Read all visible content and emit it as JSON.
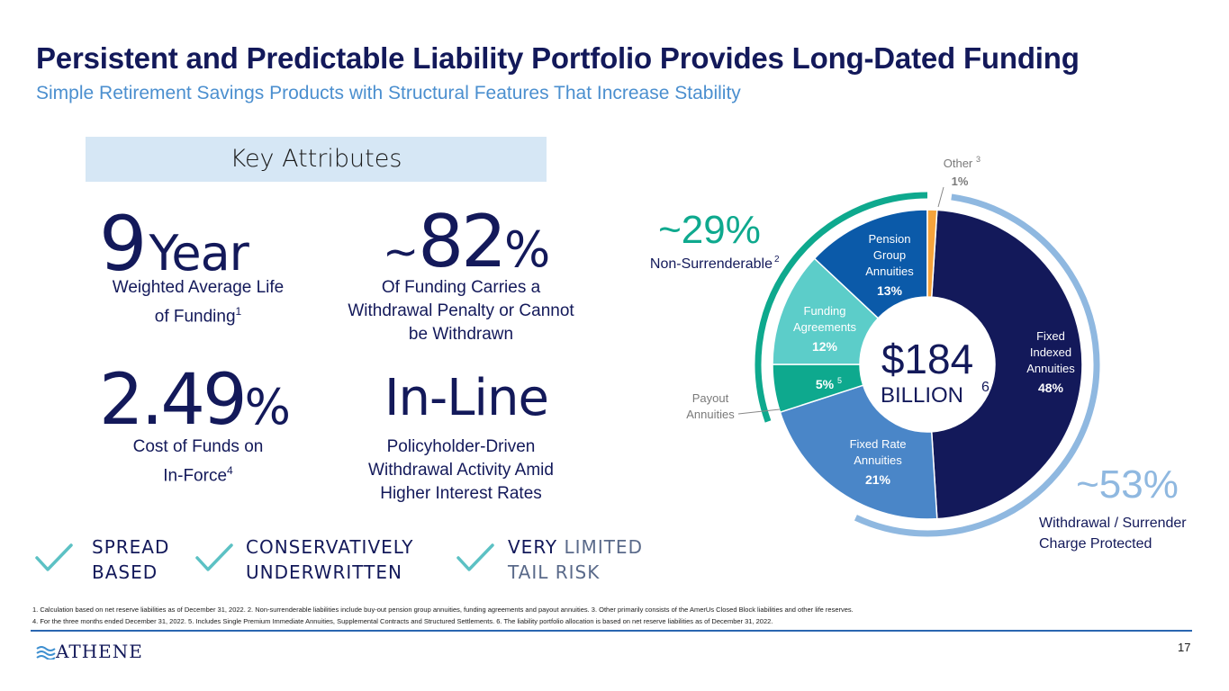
{
  "header": {
    "title": "Persistent and Predictable Liability Portfolio Provides Long-Dated Funding",
    "subtitle": "Simple Retirement Savings Products with Structural Features That Increase Stability"
  },
  "key_attributes": {
    "heading": "Key Attributes",
    "items": [
      {
        "value": "9",
        "unit": "Year",
        "desc1": "Weighted Average Life",
        "desc2": "of Funding",
        "sup": "1"
      },
      {
        "prefix": "~",
        "value": "82",
        "unit": "%",
        "desc1": "Of Funding Carries a",
        "desc2": "Withdrawal Penalty or Cannot",
        "desc3": "be Withdrawn"
      },
      {
        "value": "2.49",
        "unit": "%",
        "desc1": "Cost of Funds on",
        "desc2": "In-Force",
        "sup": "4"
      },
      {
        "value": "In-Line",
        "desc1": "Policyholder-Driven",
        "desc2": "Withdrawal Activity Amid",
        "desc3": "Higher Interest Rates"
      }
    ]
  },
  "checks": [
    {
      "line1": "SPREAD",
      "line2": "BASED"
    },
    {
      "line1": "CONSERVATIVELY",
      "line2": "UNDERWRITTEN"
    },
    {
      "line1a": "VERY ",
      "line1b": "LIMITED",
      "line2": "TAIL RISK"
    }
  ],
  "chart_data": {
    "type": "pie",
    "title": "",
    "center_value": "$184",
    "center_label": "BILLION",
    "center_sup": "6",
    "categories": [
      "Fixed Indexed Annuities",
      "Fixed Rate Annuities",
      "Payout Annuities",
      "Funding Agreements",
      "Pension Group Annuities",
      "Other"
    ],
    "values": [
      48,
      21,
      5,
      12,
      13,
      1
    ],
    "value_labels": [
      "48%",
      "21%",
      "5%",
      "12%",
      "13%",
      "1%"
    ],
    "label_lines": [
      [
        "Fixed",
        "Indexed",
        "Annuities"
      ],
      [
        "Fixed Rate",
        "Annuities"
      ],
      [
        "Payout",
        "Annuities"
      ],
      [
        "Funding",
        "Agreements"
      ],
      [
        "Pension",
        "Group",
        "Annuities"
      ],
      [
        "Other"
      ]
    ],
    "label_sups": [
      "",
      "",
      "5",
      "",
      "",
      "3"
    ],
    "colors": [
      "#13195a",
      "#4a86c8",
      "#0ea98e",
      "#5ccdc9",
      "#0b5aa9",
      "#f5a33c"
    ],
    "annotations": [
      {
        "value": "~29%",
        "label": "Non-Surrenderable",
        "sup": "2",
        "color": "#0ea98e"
      },
      {
        "value": "~53%",
        "label1": "Withdrawal / Surrender",
        "label2": "Charge Protected",
        "color": "#8fb8e0"
      }
    ]
  },
  "footnotes": {
    "line1": "1. Calculation based on net reserve liabilities as of December 31, 2022. 2. Non-surrenderable liabilities include buy-out pension group annuities, funding agreements and payout annuities. 3. Other primarily consists of the AmerUs Closed Block liabilities and other life reserves.",
    "line2": "4. For the three months ended December 31, 2022. 5. Includes Single Premium Immediate Annuities, Supplemental Contracts and Structured Settlements. 6. The liability portfolio allocation is based on net reserve liabilities as of December 31, 2022."
  },
  "footer": {
    "logo": "ATHENE",
    "page": "17"
  }
}
